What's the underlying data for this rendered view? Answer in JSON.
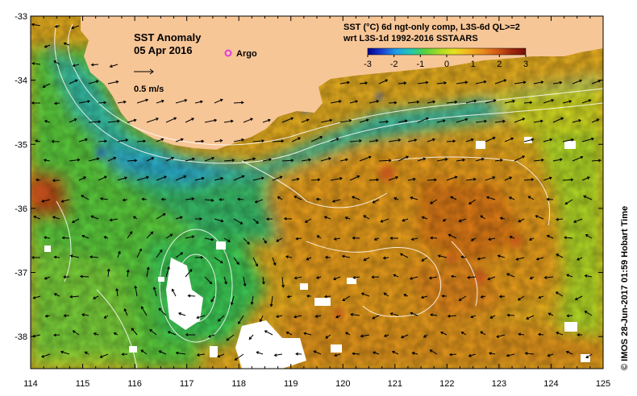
{
  "title": {
    "line1": "SST Anomaly",
    "line2": "05 Apr 2016"
  },
  "legend": {
    "argo_label": "Argo",
    "argo_color": "#e03ce0",
    "vector_label": "0.5 m/s"
  },
  "colorbar": {
    "header_line1": "SST (°C) 6d ngt-only comp, L3S-6d QL>=2",
    "header_line2": "wrt L3S-1d 1992-2016 SSTAARS",
    "ticks": [
      "-3",
      "-2",
      "-1",
      "0",
      "1",
      "2",
      "3"
    ],
    "colors": [
      "#00008b",
      "#1a3fd0",
      "#1ea0e6",
      "#20c8b0",
      "#58d23c",
      "#a8dc28",
      "#e6e01e",
      "#f0b41e",
      "#e88c1e",
      "#d25a14",
      "#a02810",
      "#780f0a"
    ]
  },
  "map": {
    "lon_range": [
      114,
      125
    ],
    "lat_range": [
      -38.5,
      -33
    ],
    "x_ticks": [
      "114",
      "115",
      "116",
      "117",
      "118",
      "119",
      "120",
      "121",
      "122",
      "123",
      "124",
      "125"
    ],
    "y_ticks": [
      "-33",
      "-34",
      "-35",
      "-36",
      "-37",
      "-38"
    ],
    "land_color": "#f7c697",
    "missing_color": "#ffffff"
  },
  "credit": {
    "text": "© IMOS 28-Jun-2017 01:59 Hobart Time"
  }
}
